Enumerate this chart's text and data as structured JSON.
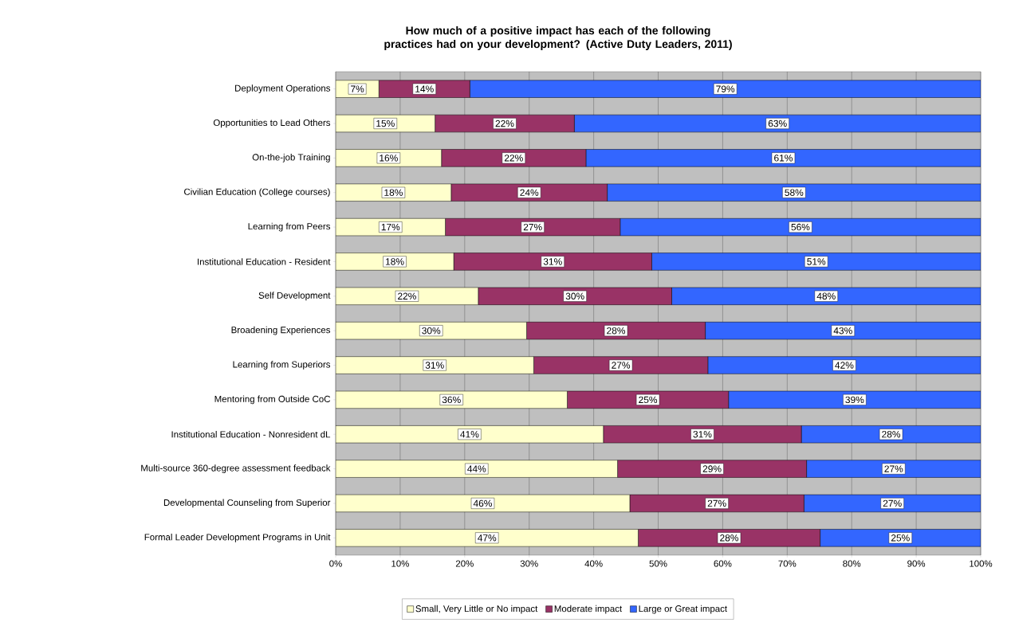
{
  "chart_data": {
    "type": "bar",
    "orientation": "horizontal",
    "stacked": true,
    "title": "How much of a positive impact has each of the following practices had on your development? (Active Duty Leaders, 2011)",
    "categories": [
      "Deployment Operations",
      "Opportunities to Lead Others",
      "On-the-job Training",
      "Civilian Education (College courses)",
      "Learning from Peers",
      "Institutional Education - Resident",
      "Self Development",
      "Broadening Experiences",
      "Learning from Superiors",
      "Mentoring from Outside CoC",
      "Institutional Education - Nonresident dL",
      "Multi-source 360-degree assessment feedback",
      "Developmental Counseling from Superior",
      "Formal Leader Development Programs in Unit"
    ],
    "series": [
      {
        "name": "Small, Very Little or No impact",
        "color": "#ffffcc",
        "values": [
          6.7,
          15.4,
          16.4,
          17.9,
          17.0,
          18.3,
          22.1,
          29.6,
          30.7,
          35.9,
          41.5,
          43.7,
          45.6,
          46.9
        ],
        "value_labels": [
          "7%",
          "15%",
          "16%",
          "18%",
          "17%",
          "18%",
          "22%",
          "30%",
          "31%",
          "36%",
          "41%",
          "44%",
          "46%",
          "47%"
        ]
      },
      {
        "name": "Moderate impact",
        "color": "#993366",
        "values": [
          14.1,
          21.6,
          22.4,
          24.2,
          27.1,
          30.7,
          30.0,
          27.7,
          27.0,
          25.0,
          30.7,
          29.3,
          27.0,
          28.2
        ],
        "value_labels": [
          "14%",
          "22%",
          "22%",
          "24%",
          "27%",
          "31%",
          "30%",
          "28%",
          "27%",
          "25%",
          "31%",
          "29%",
          "27%",
          "28%"
        ]
      },
      {
        "name": "Large or Great impact",
        "color": "#3366ff",
        "values": [
          79.2,
          63.0,
          61.2,
          57.9,
          55.9,
          51.0,
          47.9,
          42.7,
          42.3,
          39.1,
          27.8,
          27.0,
          27.4,
          24.9
        ],
        "value_labels": [
          "79%",
          "63%",
          "61%",
          "58%",
          "56%",
          "51%",
          "48%",
          "43%",
          "42%",
          "39%",
          "28%",
          "27%",
          "27%",
          "25%"
        ]
      }
    ],
    "xlim": [
      0,
      100
    ],
    "xticks": [
      {
        "value": 0,
        "label": "0%"
      },
      {
        "value": 10,
        "label": "10%"
      },
      {
        "value": 20,
        "label": "20%"
      },
      {
        "value": 30,
        "label": "30%"
      },
      {
        "value": 40,
        "label": "40%"
      },
      {
        "value": 50,
        "label": "50%"
      },
      {
        "value": 60,
        "label": "60%"
      },
      {
        "value": 70,
        "label": "70%"
      },
      {
        "value": 80,
        "label": "80%"
      },
      {
        "value": 90,
        "label": "90%"
      },
      {
        "value": 100,
        "label": "100%"
      }
    ],
    "grid": "x",
    "legend": "bottom"
  }
}
